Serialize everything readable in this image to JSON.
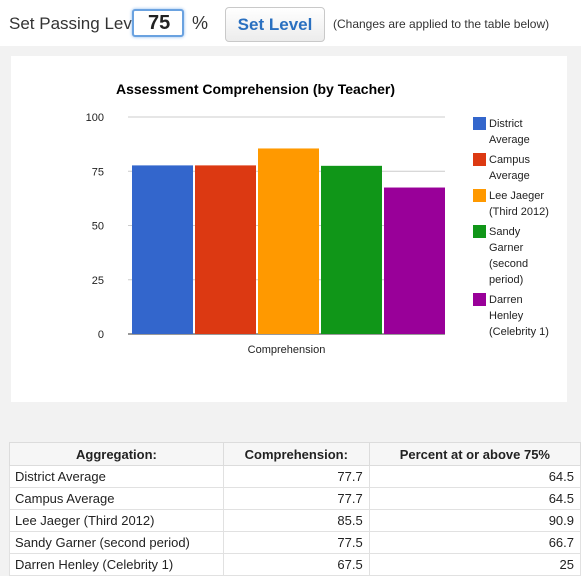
{
  "controls": {
    "passing_label": "Set Passing Level",
    "passing_value": "75",
    "percent_sign": "%",
    "set_button_label": "Set Level",
    "note": "(Changes are applied to the table below)"
  },
  "colors": {
    "district": "#3366cc",
    "campus": "#dc3912",
    "jaeger": "#ff9900",
    "garner": "#109618",
    "henley": "#990099"
  },
  "chart_data": {
    "type": "bar",
    "title": "Assessment Comprehension (by Teacher)",
    "categories": [
      "Comprehension"
    ],
    "xlabel": "",
    "ylabel": "",
    "ylim": [
      0,
      100
    ],
    "yticks": [
      "100",
      "75",
      "50",
      "25",
      "0"
    ],
    "grid": true,
    "legend_position": "right",
    "series": [
      {
        "name": "District Average",
        "values": [
          77.7
        ],
        "color": "#3366cc",
        "legend_lines": [
          "District",
          "Average"
        ]
      },
      {
        "name": "Campus Average",
        "values": [
          77.7
        ],
        "color": "#dc3912",
        "legend_lines": [
          "Campus",
          "Average"
        ]
      },
      {
        "name": "Lee Jaeger (Third 2012)",
        "values": [
          85.5
        ],
        "color": "#ff9900",
        "legend_lines": [
          "Lee Jaeger",
          "(Third 2012)"
        ]
      },
      {
        "name": "Sandy Garner (second period)",
        "values": [
          77.5
        ],
        "color": "#109618",
        "legend_lines": [
          "Sandy",
          "Garner",
          "(second",
          "period)"
        ]
      },
      {
        "name": "Darren Henley (Celebrity 1)",
        "values": [
          67.5
        ],
        "color": "#990099",
        "legend_lines": [
          "Darren",
          "Henley",
          "(Celebrity 1)"
        ]
      }
    ]
  },
  "table": {
    "headers": [
      "Aggregation:",
      "Comprehension:",
      "Percent at or above 75%"
    ],
    "rows": [
      [
        "District Average",
        "77.7",
        "64.5"
      ],
      [
        "Campus Average",
        "77.7",
        "64.5"
      ],
      [
        "Lee Jaeger (Third 2012)",
        "85.5",
        "90.9"
      ],
      [
        "Sandy Garner (second period)",
        "77.5",
        "66.7"
      ],
      [
        "Darren Henley (Celebrity 1)",
        "67.5",
        "25"
      ]
    ]
  }
}
